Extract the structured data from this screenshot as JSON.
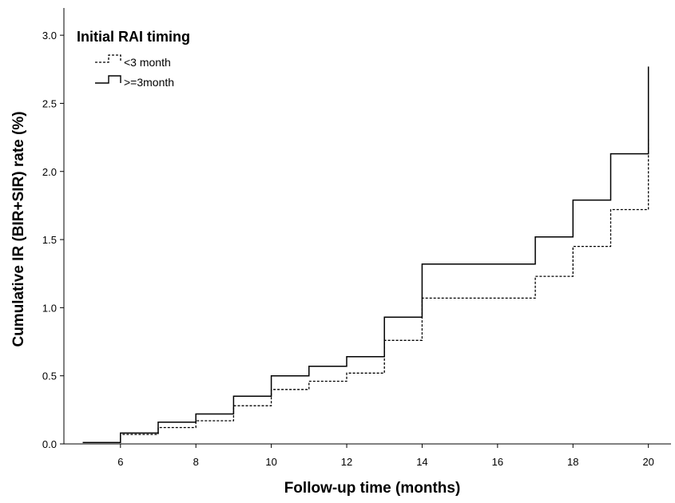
{
  "chart_data": {
    "type": "line",
    "step": true,
    "title": "",
    "xlabel": "Follow-up time (months)",
    "ylabel": "Cumulative IR (BIR+SIR) rate (%)",
    "xlim": [
      4.5,
      20.6
    ],
    "ylim": [
      0,
      3.2
    ],
    "xticks": [
      6,
      8,
      10,
      12,
      14,
      16,
      18,
      20
    ],
    "yticks": [
      "0.0",
      "0.5",
      "1.0",
      "1.5",
      "2.0",
      "2.5",
      "3.0"
    ],
    "grid": false,
    "legend": {
      "title": "Initial RAI timing",
      "position": "top-left"
    },
    "series": [
      {
        "name": "<3 month",
        "line_style": "dashed",
        "color": "#000000",
        "x": [
          5,
          6,
          7,
          8,
          9,
          10,
          11,
          12,
          13,
          14,
          17,
          18,
          19,
          20,
          20
        ],
        "y": [
          0.01,
          0.07,
          0.12,
          0.17,
          0.28,
          0.4,
          0.46,
          0.52,
          0.76,
          1.07,
          1.23,
          1.45,
          1.72,
          2.24,
          2.24
        ]
      },
      {
        "name": ">=3month",
        "line_style": "solid",
        "color": "#000000",
        "x": [
          5,
          6,
          7,
          8,
          9,
          10,
          11,
          12,
          13,
          14,
          17,
          18,
          19,
          20,
          20
        ],
        "y": [
          0.01,
          0.08,
          0.16,
          0.22,
          0.35,
          0.5,
          0.57,
          0.64,
          0.93,
          1.32,
          1.52,
          1.79,
          2.13,
          2.77,
          2.77
        ]
      }
    ]
  }
}
